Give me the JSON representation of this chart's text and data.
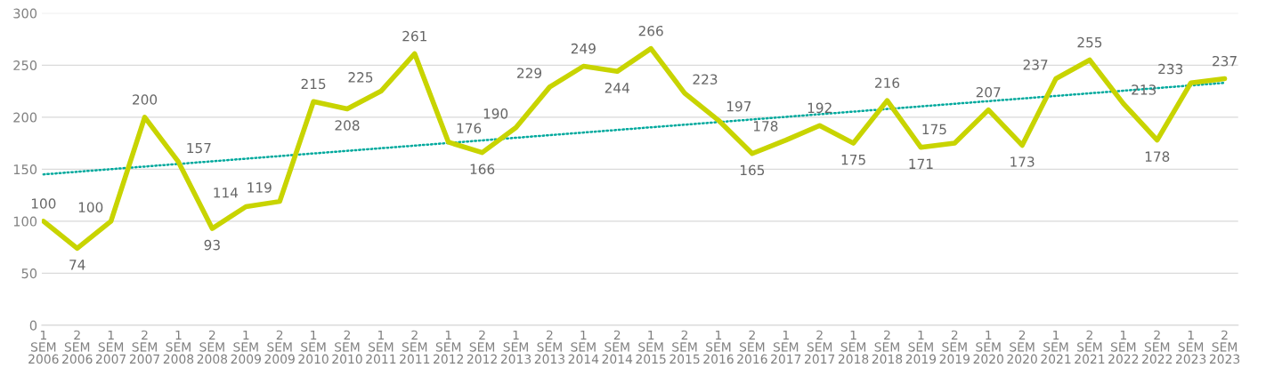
{
  "chart_data": {
    "type": "line",
    "categories": [
      "1\nSEM\n2006",
      "2\nSEM\n2006",
      "1\nSEM\n2007",
      "2\nSEM\n2007",
      "1\nSEM\n2008",
      "2\nSEM\n2008",
      "1\nSEM\n2009",
      "2\nSEM\n2009",
      "1\nSEM\n2010",
      "2\nSEM\n2010",
      "1\nSEM\n2011",
      "2\nSEM\n2011",
      "1\nSEM\n2012",
      "2\nSEM\n2012",
      "1\nSEM\n2013",
      "2\nSEM\n2013",
      "1\nSEM\n2014",
      "2\nSEM\n2014",
      "1\nSEM\n2015",
      "2\nSEM\n2015",
      "1\nSEM\n2016",
      "2\nSEM\n2016",
      "1\nSEM\n2017",
      "2\nSEM\n2017",
      "1\nSEM\n2018",
      "2\nSEM\n2018",
      "1\nSEM\n2019",
      "2\nSEM\n2019",
      "1\nSEM\n2020",
      "2\nSEM\n2020",
      "1\nSEM\n2021",
      "2\nSEM\n2021",
      "1\nSEM\n2022",
      "2\nSEM\n2022",
      "1\nSEM\n2023",
      "2\nSEM\n2023"
    ],
    "series": [
      {
        "color": "#c8d400",
        "line_style": "solid",
        "values": [
          100,
          74,
          100,
          200,
          157,
          93,
          114,
          119,
          215,
          208,
          225,
          261,
          176,
          166,
          190,
          229,
          249,
          244,
          266,
          223,
          197,
          165,
          178,
          192,
          175,
          216,
          171,
          175,
          207,
          173,
          237,
          255,
          213,
          178,
          233,
          237
        ]
      },
      {
        "type": "line",
        "color": "#00a99d",
        "line_style": "dotted",
        "data_labels": false,
        "x": [
          "1\nSEM\n2006",
          "2\nSEM\n2023"
        ],
        "values": [
          145,
          233
        ]
      }
    ],
    "ylim": [
      0,
      300
    ],
    "yticks": [
      0,
      50,
      100,
      150,
      200,
      250,
      300
    ],
    "grid": "y",
    "data_labels": true,
    "marker": "none",
    "legend": false
  }
}
